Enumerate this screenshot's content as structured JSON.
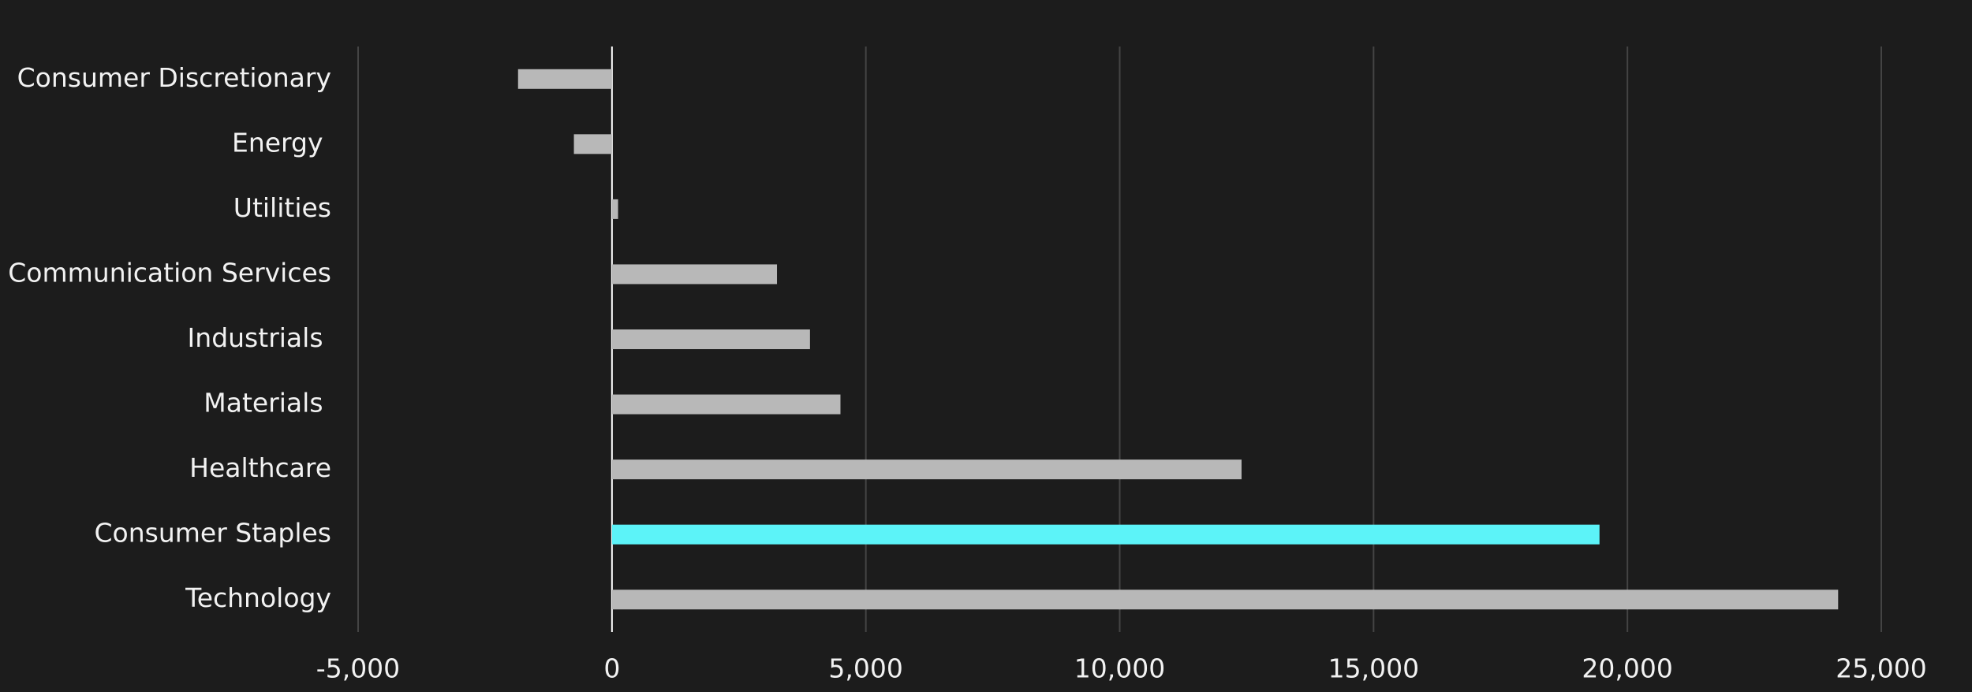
{
  "chart_data": {
    "type": "hbar",
    "categories": [
      "Consumer Discretionary",
      "Energy ",
      "Utilities",
      "Communication Services",
      "Industrials ",
      "Materials ",
      "Healthcare",
      "Consumer Staples",
      "Technology"
    ],
    "values": [
      -1850,
      -750,
      120,
      3250,
      3900,
      4500,
      12400,
      19450,
      24150
    ],
    "colors": [
      "#b8b8b8",
      "#b8b8b8",
      "#b8b8b8",
      "#b8b8b8",
      "#b8b8b8",
      "#b8b8b8",
      "#b8b8b8",
      "#5cf3f8",
      "#b8b8b8"
    ],
    "xlim": [
      -5000,
      25000
    ],
    "xticks": [
      {
        "value": -5000,
        "label": "-5,000"
      },
      0,
      {
        "value": 5000,
        "label": "5,000"
      },
      {
        "value": 10000,
        "label": "10,000"
      },
      {
        "value": 15000,
        "label": "15,000"
      },
      {
        "value": 20000,
        "label": "20,000"
      },
      {
        "value": 25000,
        "label": "25,000"
      }
    ],
    "grid": true
  }
}
